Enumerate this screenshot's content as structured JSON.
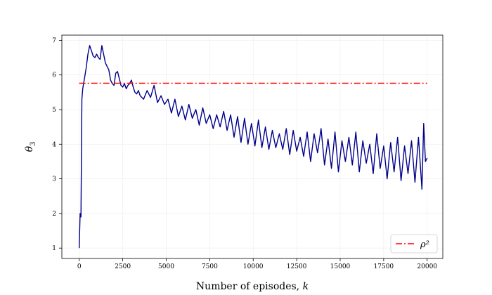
{
  "chart_data": {
    "type": "line",
    "xlabel_text": "Number of episodes, ",
    "xlabel_var": "k",
    "ylabel_text": "θ",
    "ylabel_sub": "3",
    "xlim": [
      -1000,
      20900
    ],
    "ylim": [
      0.7,
      7.15
    ],
    "xticks": [
      0,
      2500,
      5000,
      7500,
      10000,
      12500,
      15000,
      17500,
      20000
    ],
    "yticks": [
      1,
      2,
      3,
      4,
      5,
      6,
      7
    ],
    "grid": true,
    "legend_position": "bottom-right",
    "series": [
      {
        "kind": "trajectory",
        "color": "#00008b",
        "x": [
          0,
          50,
          100,
          150,
          200,
          300,
          400,
          500,
          600,
          700,
          800,
          900,
          1000,
          1100,
          1200,
          1300,
          1400,
          1500,
          1600,
          1700,
          1800,
          1900,
          2000,
          2100,
          2200,
          2300,
          2400,
          2500,
          2600,
          2700,
          2800,
          2900,
          3000,
          3100,
          3200,
          3300,
          3400,
          3500,
          3700,
          3900,
          4100,
          4300,
          4500,
          4700,
          4900,
          5100,
          5300,
          5500,
          5700,
          5900,
          6100,
          6300,
          6500,
          6700,
          6900,
          7100,
          7300,
          7500,
          7700,
          7900,
          8100,
          8300,
          8500,
          8700,
          8900,
          9100,
          9300,
          9500,
          9700,
          9900,
          10100,
          10300,
          10500,
          10700,
          10900,
          11100,
          11300,
          11500,
          11700,
          11900,
          12100,
          12300,
          12500,
          12700,
          12900,
          13100,
          13300,
          13500,
          13700,
          13900,
          14100,
          14300,
          14500,
          14700,
          14900,
          15100,
          15300,
          15500,
          15700,
          15900,
          16100,
          16300,
          16500,
          16700,
          16900,
          17100,
          17300,
          17500,
          17700,
          17900,
          18100,
          18300,
          18500,
          18700,
          18900,
          19100,
          19300,
          19500,
          19700,
          19800,
          19900,
          20000
        ],
        "y": [
          1.0,
          2.0,
          1.9,
          5.3,
          5.6,
          5.9,
          6.2,
          6.6,
          6.85,
          6.7,
          6.55,
          6.5,
          6.6,
          6.5,
          6.45,
          6.85,
          6.6,
          6.35,
          6.25,
          6.15,
          5.85,
          5.75,
          5.7,
          6.05,
          6.1,
          5.9,
          5.7,
          5.65,
          5.75,
          5.6,
          5.7,
          5.75,
          5.85,
          5.65,
          5.5,
          5.45,
          5.55,
          5.4,
          5.3,
          5.55,
          5.35,
          5.7,
          5.2,
          5.4,
          5.15,
          5.3,
          4.9,
          5.3,
          4.8,
          5.1,
          4.7,
          5.15,
          4.75,
          5.0,
          4.55,
          5.05,
          4.6,
          4.85,
          4.45,
          4.85,
          4.5,
          4.95,
          4.4,
          4.85,
          4.2,
          4.8,
          4.05,
          4.75,
          4.0,
          4.6,
          3.95,
          4.7,
          3.9,
          4.5,
          3.85,
          4.4,
          3.9,
          4.3,
          3.85,
          4.45,
          3.7,
          4.4,
          3.8,
          4.2,
          3.65,
          4.35,
          3.5,
          4.3,
          3.75,
          4.45,
          3.4,
          4.15,
          3.3,
          4.35,
          3.2,
          4.1,
          3.5,
          4.2,
          3.4,
          4.35,
          3.2,
          4.1,
          3.45,
          4.0,
          3.15,
          4.3,
          3.3,
          3.95,
          3.0,
          4.05,
          3.2,
          4.2,
          2.95,
          3.95,
          3.15,
          4.1,
          2.9,
          4.2,
          2.7,
          4.6,
          3.5,
          3.6
        ]
      },
      {
        "name": "ρ²",
        "kind": "reference",
        "color": "#ff0000",
        "x": [
          0,
          20000
        ],
        "y": [
          5.76,
          5.76
        ]
      }
    ]
  }
}
